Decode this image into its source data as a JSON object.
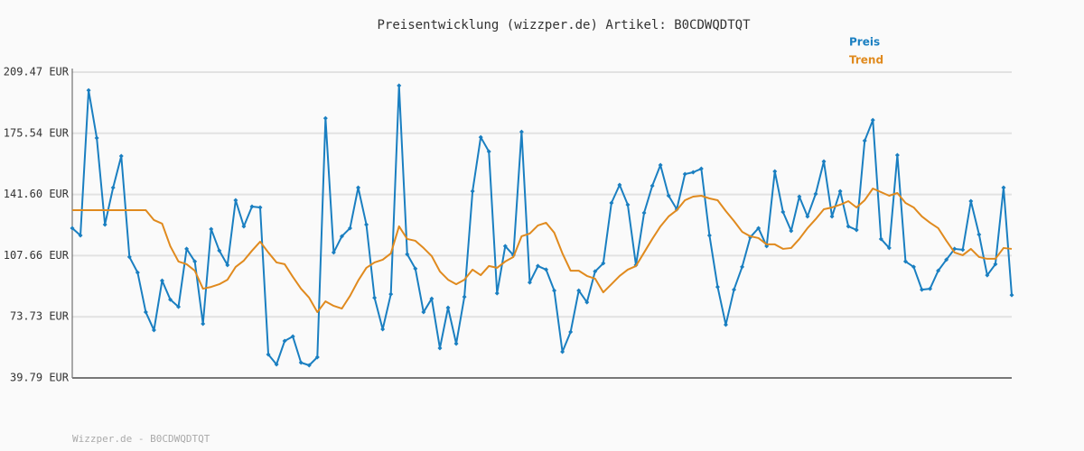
{
  "chart_data": {
    "type": "line",
    "title": "Preisentwicklung (wizzper.de) Artikel: B0CDWQDTQT",
    "footer": "Wizzper.de - B0CDWQDTQT",
    "ylim": [
      39.79,
      209.47
    ],
    "yticks": [
      {
        "value": 39.79,
        "label": "39.79 EUR"
      },
      {
        "value": 73.73,
        "label": "73.73 EUR"
      },
      {
        "value": 107.66,
        "label": "107.66 EUR"
      },
      {
        "value": 141.6,
        "label": "141.60 EUR"
      },
      {
        "value": 175.54,
        "label": "175.54 EUR"
      },
      {
        "value": 209.47,
        "label": "209.47 EUR"
      }
    ],
    "grid": true,
    "series": [
      {
        "name": "Preis",
        "color": "#1a7fc1",
        "markers": true,
        "values": [
          122.9,
          118.9,
          199.4,
          172.9,
          124.9,
          145.4,
          162.9,
          106.9,
          98.3,
          76.3,
          66.3,
          93.8,
          83.3,
          79.3,
          111.4,
          104.4,
          69.8,
          122.4,
          110.4,
          102.4,
          138.4,
          123.9,
          134.9,
          134.4,
          52.8,
          47.3,
          60.3,
          62.8,
          48.3,
          46.8,
          51.3,
          183.9,
          109.4,
          118.4,
          122.9,
          145.4,
          124.9,
          84.3,
          66.8,
          86.3,
          202.0,
          108.4,
          100.4,
          76.3,
          83.8,
          56.3,
          78.8,
          58.8,
          84.8,
          143.4,
          173.4,
          165.4,
          86.8,
          112.9,
          107.9,
          176.4,
          92.8,
          101.9,
          99.9,
          88.3,
          54.3,
          65.3,
          88.3,
          81.8,
          98.9,
          103.4,
          136.9,
          146.9,
          135.9,
          102.4,
          131.4,
          146.4,
          157.9,
          140.9,
          133.4,
          152.9,
          153.9,
          155.9,
          118.9,
          90.3,
          69.3,
          88.8,
          101.4,
          117.9,
          122.9,
          112.9,
          154.4,
          131.9,
          121.4,
          140.4,
          129.4,
          141.9,
          159.9,
          129.4,
          143.4,
          123.9,
          121.9,
          171.4,
          182.9,
          116.9,
          111.9,
          163.4,
          104.4,
          101.4,
          88.8,
          89.3,
          99.3,
          105.4,
          111.4,
          110.9,
          137.9,
          119.4,
          96.8,
          102.9,
          145.4,
          85.8
        ]
      },
      {
        "name": "Trend",
        "color": "#e08a1e",
        "markers": false,
        "values": [
          132.9,
          132.9,
          132.9,
          132.9,
          132.9,
          132.9,
          132.9,
          132.9,
          132.9,
          132.9,
          127.4,
          125.4,
          112.9,
          104.4,
          102.9,
          99.3,
          89.3,
          90.3,
          91.8,
          94.3,
          101.4,
          104.9,
          110.4,
          115.4,
          109.4,
          103.9,
          102.9,
          95.9,
          89.3,
          84.3,
          76.3,
          82.3,
          79.8,
          78.3,
          85.3,
          93.8,
          100.9,
          103.9,
          105.4,
          108.9,
          123.9,
          116.9,
          115.9,
          111.9,
          107.4,
          98.9,
          94.3,
          91.8,
          94.3,
          99.9,
          96.8,
          101.9,
          100.9,
          104.4,
          106.9,
          118.4,
          119.9,
          124.4,
          125.9,
          120.4,
          108.9,
          99.3,
          99.3,
          96.4,
          94.9,
          87.3,
          91.8,
          96.4,
          99.9,
          101.9,
          109.4,
          116.9,
          123.9,
          129.4,
          132.9,
          138.4,
          140.4,
          140.9,
          139.4,
          138.4,
          132.4,
          126.9,
          120.9,
          118.4,
          117.4,
          113.9,
          113.9,
          111.4,
          111.9,
          116.9,
          122.9,
          127.9,
          133.4,
          134.4,
          135.9,
          137.9,
          134.4,
          138.4,
          144.9,
          142.9,
          140.9,
          142.4,
          136.9,
          134.4,
          129.4,
          125.9,
          122.9,
          115.9,
          109.4,
          107.9,
          111.4,
          106.9,
          105.9,
          105.9,
          111.9,
          111.4
        ]
      }
    ]
  }
}
